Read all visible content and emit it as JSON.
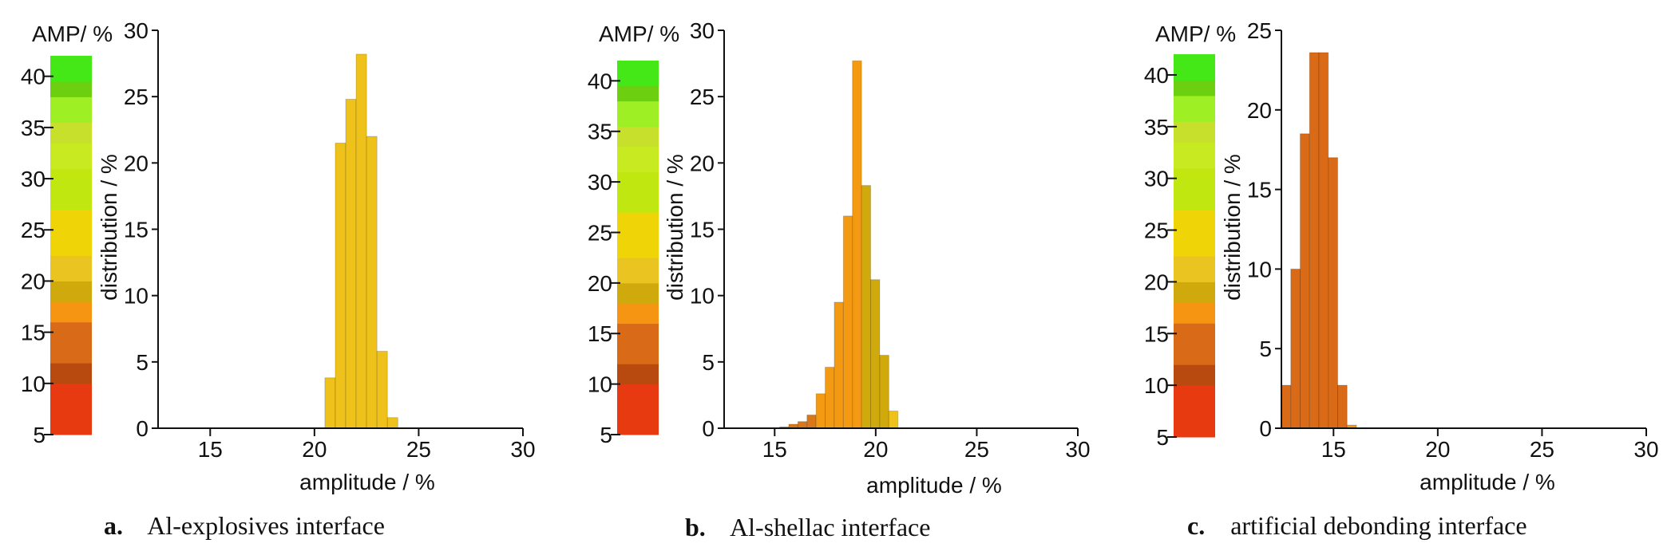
{
  "chart_data": [
    {
      "type": "bar",
      "caption_letter": "a.",
      "caption_text": "Al-explosives interface",
      "colorbar": {
        "title": "AMP/ %",
        "ticks": [
          "40",
          "35",
          "30",
          "25",
          "20",
          "15",
          "10",
          "5"
        ],
        "range": [
          5,
          42
        ]
      },
      "xlabel": "amplitude / %",
      "ylabel": "distribution / %",
      "xlim": [
        12.5,
        30
      ],
      "ylim": [
        0,
        30
      ],
      "xticks": [
        15,
        20,
        25,
        30
      ],
      "yticks": [
        0,
        5,
        10,
        15,
        20,
        25,
        30
      ],
      "bins": [
        {
          "x0": 20.5,
          "x1": 21.0,
          "value": 3.8,
          "color": "#eec21a"
        },
        {
          "x0": 21.0,
          "x1": 21.5,
          "value": 21.5,
          "color": "#eec21a"
        },
        {
          "x0": 21.5,
          "x1": 22.0,
          "value": 24.8,
          "color": "#eec21a"
        },
        {
          "x0": 22.0,
          "x1": 22.5,
          "value": 28.2,
          "color": "#eec21a"
        },
        {
          "x0": 22.5,
          "x1": 23.0,
          "value": 22.0,
          "color": "#eec21a"
        },
        {
          "x0": 23.0,
          "x1": 23.5,
          "value": 5.8,
          "color": "#eec21a"
        },
        {
          "x0": 23.5,
          "x1": 24.0,
          "value": 0.8,
          "color": "#eec21a"
        }
      ]
    },
    {
      "type": "bar",
      "caption_letter": "b.",
      "caption_text": "Al-shellac interface",
      "colorbar": {
        "title": "AMP/ %",
        "ticks": [
          "40",
          "35",
          "30",
          "25",
          "20",
          "15",
          "10",
          "5"
        ],
        "range": [
          5,
          42
        ]
      },
      "xlabel": "amplitude / %",
      "ylabel": "distribution / %",
      "xlim": [
        12.5,
        30
      ],
      "ylim": [
        0,
        30
      ],
      "xticks": [
        15,
        20,
        25,
        30
      ],
      "ytick_labels": [
        "0",
        "5",
        "10",
        "15",
        "20",
        "25",
        "30"
      ],
      "bins": [
        {
          "x0": 15.25,
          "x1": 15.7,
          "value": 0.1,
          "color": "#d8781a"
        },
        {
          "x0": 15.7,
          "x1": 16.15,
          "value": 0.3,
          "color": "#d8781a"
        },
        {
          "x0": 16.15,
          "x1": 16.6,
          "value": 0.5,
          "color": "#d8781a"
        },
        {
          "x0": 16.6,
          "x1": 17.05,
          "value": 1.0,
          "color": "#d8781a"
        },
        {
          "x0": 17.05,
          "x1": 17.5,
          "value": 2.6,
          "color": "#f39a12"
        },
        {
          "x0": 17.5,
          "x1": 17.95,
          "value": 4.6,
          "color": "#f39a12"
        },
        {
          "x0": 17.95,
          "x1": 18.4,
          "value": 9.5,
          "color": "#f39a12"
        },
        {
          "x0": 18.4,
          "x1": 18.85,
          "value": 16.0,
          "color": "#f39a12"
        },
        {
          "x0": 18.85,
          "x1": 19.3,
          "value": 27.7,
          "color": "#f39a12"
        },
        {
          "x0": 19.3,
          "x1": 19.75,
          "value": 18.3,
          "color": "#d0aa0c"
        },
        {
          "x0": 19.75,
          "x1": 20.2,
          "value": 11.2,
          "color": "#d0aa0c"
        },
        {
          "x0": 20.2,
          "x1": 20.65,
          "value": 5.5,
          "color": "#d0aa0c"
        },
        {
          "x0": 20.65,
          "x1": 21.1,
          "value": 1.3,
          "color": "#eec21a"
        }
      ]
    },
    {
      "type": "bar",
      "caption_letter": "c.",
      "caption_text": "artificial debonding interface",
      "colorbar": {
        "title": "AMP/ %",
        "ticks": [
          "40",
          "35",
          "30",
          "25",
          "20",
          "15",
          "10",
          "5"
        ],
        "range": [
          5,
          42
        ]
      },
      "xlabel": "amplitude / %",
      "ylabel": "distribution / %",
      "xlim": [
        12.5,
        30
      ],
      "ylim": [
        0,
        25
      ],
      "xticks": [
        15,
        20,
        25,
        30
      ],
      "yticks": [
        0,
        5,
        10,
        15,
        20,
        25
      ],
      "bins": [
        {
          "x0": 12.5,
          "x1": 12.95,
          "value": 2.7,
          "color": "#d86a18"
        },
        {
          "x0": 12.95,
          "x1": 13.4,
          "value": 10.0,
          "color": "#d86a18"
        },
        {
          "x0": 13.4,
          "x1": 13.85,
          "value": 18.5,
          "color": "#d86a18"
        },
        {
          "x0": 13.85,
          "x1": 14.3,
          "value": 23.6,
          "color": "#d86a18"
        },
        {
          "x0": 14.3,
          "x1": 14.75,
          "value": 23.6,
          "color": "#d86a18"
        },
        {
          "x0": 14.75,
          "x1": 15.2,
          "value": 17.0,
          "color": "#d86a18"
        },
        {
          "x0": 15.2,
          "x1": 15.65,
          "value": 2.7,
          "color": "#d86a18"
        },
        {
          "x0": 15.65,
          "x1": 16.1,
          "value": 0.2,
          "color": "#f39a12"
        }
      ]
    }
  ],
  "colorbar_bands": [
    {
      "from": 5,
      "to": 10,
      "color": "#e83a10"
    },
    {
      "from": 10,
      "to": 12,
      "color": "#b84a10"
    },
    {
      "from": 12,
      "to": 16,
      "color": "#d86a18"
    },
    {
      "from": 16,
      "to": 18,
      "color": "#f59512"
    },
    {
      "from": 18,
      "to": 20,
      "color": "#d0aa0c"
    },
    {
      "from": 20,
      "to": 22.5,
      "color": "#eac420"
    },
    {
      "from": 22.5,
      "to": 27,
      "color": "#efd408"
    },
    {
      "from": 27,
      "to": 31,
      "color": "#c0e810"
    },
    {
      "from": 31,
      "to": 33.5,
      "color": "#c8ea20"
    },
    {
      "from": 33.5,
      "to": 35.5,
      "color": "#c6e02c"
    },
    {
      "from": 35.5,
      "to": 38,
      "color": "#9ef024"
    },
    {
      "from": 38,
      "to": 39.5,
      "color": "#6cd010"
    },
    {
      "from": 39.5,
      "to": 42,
      "color": "#44e816"
    }
  ]
}
